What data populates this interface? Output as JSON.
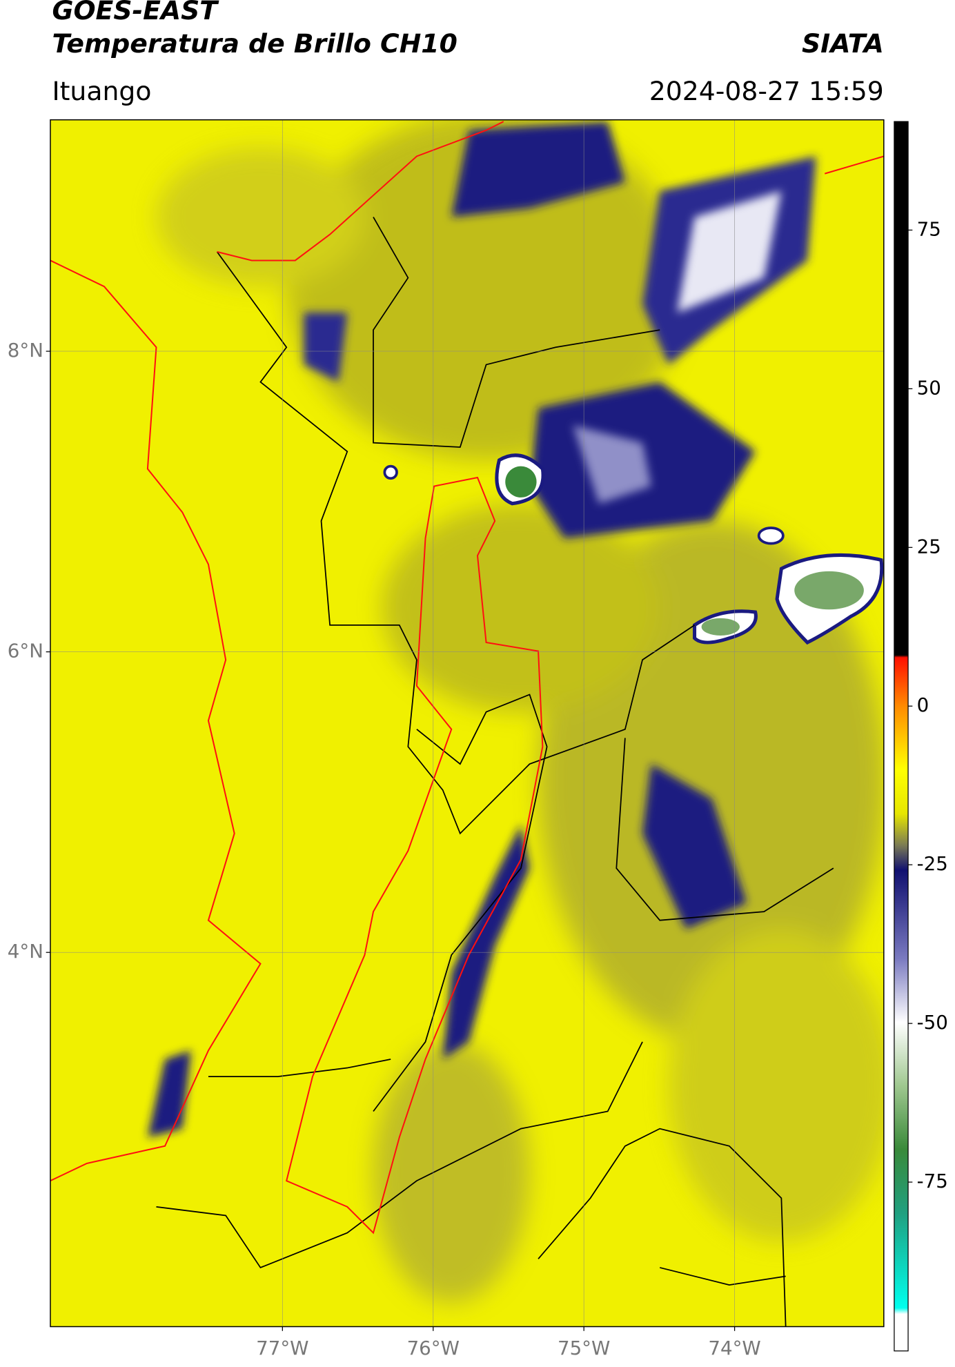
{
  "header": {
    "title": "GOES-EAST",
    "subtitle": "Temperatura de Brillo CH10",
    "source": "SIATA",
    "location": "Ituango",
    "datetime": "2024-08-27 15:59"
  },
  "map": {
    "xlim": [
      -78.54,
      -73.01
    ],
    "ylim": [
      1.51,
      9.54
    ],
    "xticks": [
      {
        "value": -77,
        "label": "77°W"
      },
      {
        "value": -76,
        "label": "76°W"
      },
      {
        "value": -75,
        "label": "75°W"
      },
      {
        "value": -74,
        "label": "74°W"
      }
    ],
    "yticks": [
      {
        "value": 8,
        "label": "8°N"
      },
      {
        "value": 6,
        "label": "6°N"
      },
      {
        "value": 4,
        "label": "4°N"
      }
    ],
    "grid": true
  },
  "colorbar": {
    "clim": [
      -101.6,
      92.1
    ],
    "ticks": [
      75,
      50,
      25,
      0,
      -25,
      -50,
      -75
    ]
  }
}
